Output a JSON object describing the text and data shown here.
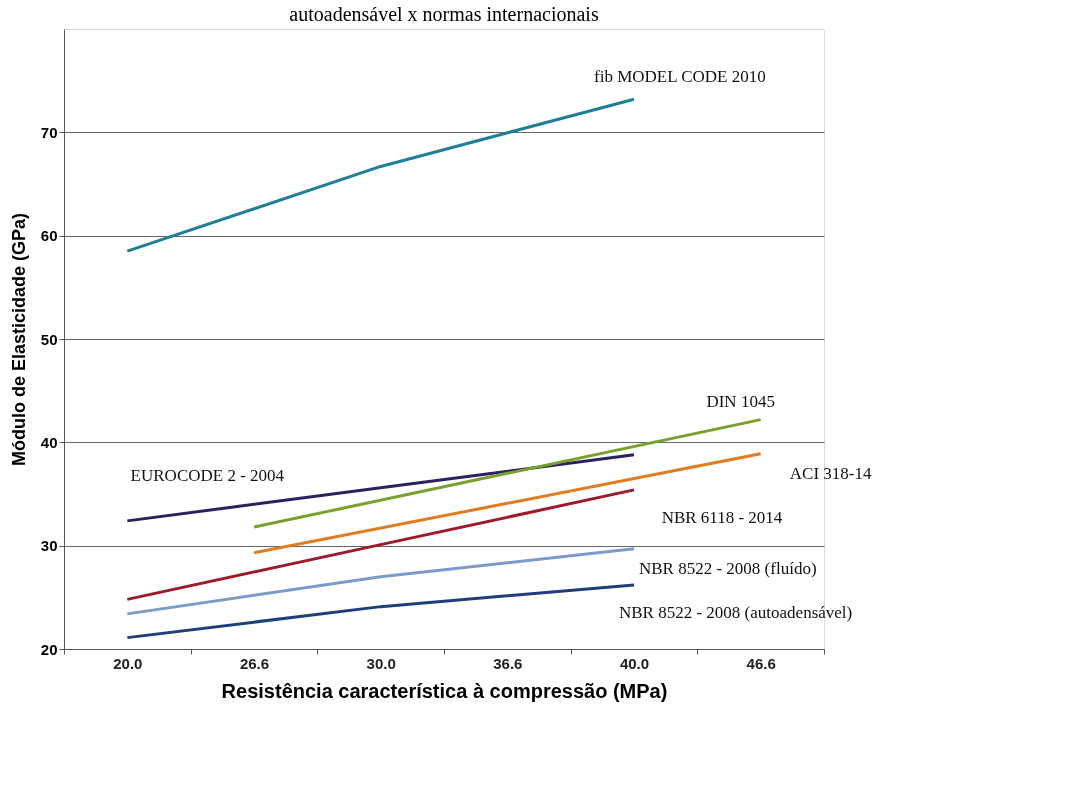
{
  "chart_data": {
    "type": "line",
    "title": "autoadensável x normas internacionais",
    "xlabel": "Resistência característica à compressão (MPa)",
    "ylabel": "Módulo de Elasticidade (GPa)",
    "categories": [
      "20.0",
      "26.6",
      "30.0",
      "36.6",
      "40.0",
      "46.6"
    ],
    "series": [
      {
        "name": "fib MODEL CODE 2010",
        "color": "#1f7f9a",
        "values": [
          58.5,
          null,
          66.7,
          null,
          73.2,
          null
        ]
      },
      {
        "name": "EUROCODE 2 - 2004",
        "color": "#2e1f5e",
        "values": [
          32.4,
          null,
          35.6,
          null,
          38.8,
          null
        ]
      },
      {
        "name": "DIN 1045",
        "color": "#7aa12e",
        "values": [
          null,
          31.8,
          null,
          37.0,
          null,
          42.2
        ]
      },
      {
        "name": "ACI 318-14",
        "color": "#e07b20",
        "values": [
          null,
          29.3,
          null,
          34.1,
          null,
          38.9
        ]
      },
      {
        "name": "NBR 6118 - 2014",
        "color": "#9c1a2a",
        "values": [
          24.8,
          null,
          30.1,
          null,
          35.4,
          null
        ]
      },
      {
        "name": "NBR 8522 - 2008 (fluído)",
        "color": "#7b9cc9",
        "values": [
          23.4,
          null,
          27.0,
          null,
          29.7,
          null
        ]
      },
      {
        "name": "NBR 8522 - 2008 (autoadensável)",
        "color": "#1f3f7a",
        "values": [
          21.1,
          null,
          24.1,
          null,
          26.2,
          null
        ]
      }
    ],
    "ylim": [
      20,
      80
    ],
    "yticks": [
      20,
      30,
      40,
      50,
      60,
      70
    ],
    "grid": "y",
    "legend": false,
    "marker": "none",
    "line_style": "solid"
  }
}
